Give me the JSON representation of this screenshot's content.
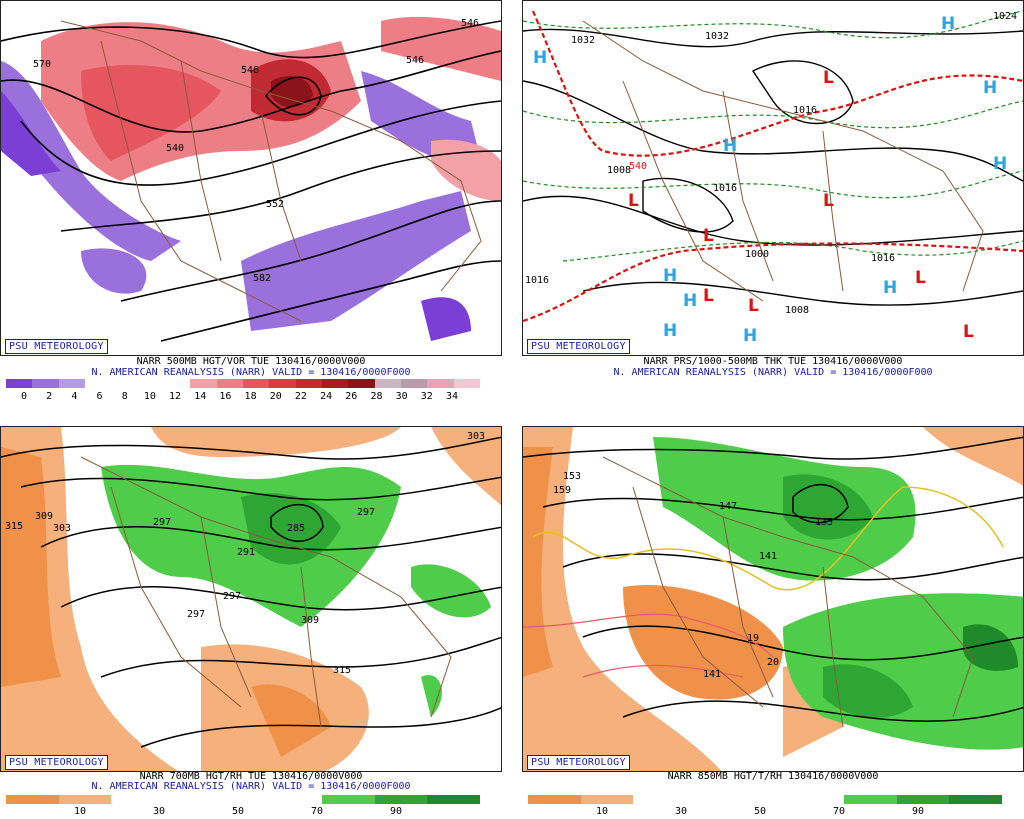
{
  "panels": [
    {
      "badge": "PSU METEOROLOGY",
      "caption1": "NARR 500MB HGT/VOR TUE 130416/0000V000",
      "caption2": "N. AMERICAN REANALYSIS (NARR) VALID = 130416/0000F000",
      "scale_labels": [
        "0",
        "2",
        "4",
        "6",
        "8",
        "10",
        "12",
        "14",
        "16",
        "18",
        "20",
        "22",
        "24",
        "26",
        "28",
        "30",
        "32",
        "34"
      ],
      "map_labels": [
        "570",
        "546",
        "540",
        "546",
        "552",
        "570",
        "582",
        "546"
      ]
    },
    {
      "badge": "PSU METEOROLOGY",
      "caption1": "NARR PRS/1000-500MB THK TUE 130416/0000V000",
      "caption2": "N. AMERICAN REANALYSIS (NARR) VALID = 130416/0000F000",
      "map_labels": [
        "1032",
        "1032",
        "1024",
        "1032",
        "1016",
        "1016",
        "1000",
        "1008",
        "1016",
        "1016",
        "1008",
        "540"
      ]
    },
    {
      "badge": "PSU METEOROLOGY",
      "caption1": "NARR 700MB HGT/RH TUE 130416/0000V000",
      "caption2": "N. AMERICAN REANALYSIS (NARR) VALID = 130416/0000F000",
      "scale_labels": [
        "10",
        "30",
        "50",
        "70",
        "90"
      ],
      "map_labels": [
        "315",
        "309",
        "303",
        "297",
        "291",
        "285",
        "297",
        "297",
        "309",
        "303",
        "315",
        "297"
      ]
    },
    {
      "badge": "PSU METEOROLOGY",
      "caption1": "NARR 850MB HGT/T/RH 130416/0000V000",
      "scale_labels": [
        "10",
        "30",
        "50",
        "70",
        "90"
      ],
      "map_labels": [
        "153",
        "159",
        "147",
        "135",
        "141",
        "141",
        "19",
        "20"
      ]
    }
  ],
  "colors": {
    "vort_scale": [
      "#7b3fd6",
      "#9a70dc",
      "#b59ae6",
      "#ffffff",
      "#ffffff",
      "#ffffff",
      "#ffffff",
      "#f3a0a6",
      "#ee7e86",
      "#e5565f",
      "#d93b45",
      "#c22a33",
      "#a51c23",
      "#8a1419",
      "#c9b6c0",
      "#b89aa8",
      "#e9a3b6",
      "#f4c6d4"
    ],
    "rh_scale": [
      "#f0914a",
      "#f6b07c",
      "#ffffff",
      "#ffffff",
      "#ffffff",
      "#ffffff",
      "#4fcd4a",
      "#2ea634",
      "#1e8a2a"
    ]
  }
}
